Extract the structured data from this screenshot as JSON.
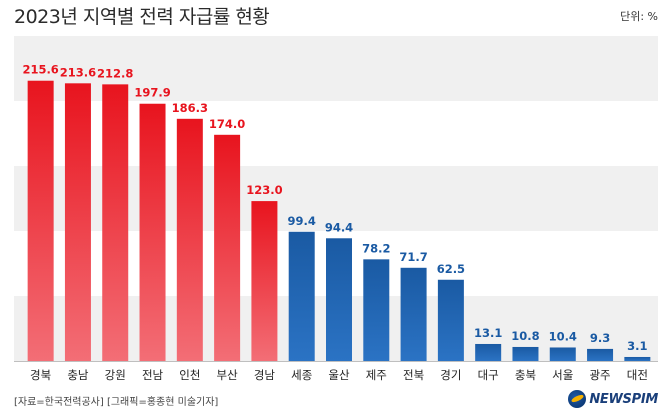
{
  "title": "2023년 지역별 전력 자급률 현황",
  "unit_label": "단위: %",
  "source": "[자료=한국전력공사] [그래픽=홍종현 미술기자]",
  "logo_text": "NEWSPIM",
  "colors": {
    "red_top": "#e8141e",
    "red_bottom": "#f36e76",
    "blue_top": "#1a5aa3",
    "blue_bottom": "#2b73c4",
    "red_label": "#e8141e",
    "blue_label": "#1a5aa3",
    "band": "#f0f0f0"
  },
  "chart_data": {
    "type": "bar",
    "categories": [
      "경북",
      "충남",
      "강원",
      "전남",
      "인천",
      "부산",
      "경남",
      "세종",
      "울산",
      "제주",
      "전북",
      "경기",
      "대구",
      "충북",
      "서울",
      "광주",
      "대전"
    ],
    "values": [
      215.6,
      213.6,
      212.8,
      197.9,
      186.3,
      174.0,
      123.0,
      99.4,
      94.4,
      78.2,
      71.7,
      62.5,
      13.1,
      10.8,
      10.4,
      9.3,
      3.1
    ],
    "labels": [
      "215.6",
      "213.6",
      "212.8",
      "197.9",
      "186.3",
      "174.0",
      "123.0",
      "99.4",
      "94.4",
      "78.2",
      "71.7",
      "62.5",
      "13.1",
      "10.8",
      "10.4",
      "9.3",
      "3.1"
    ],
    "threshold": 100,
    "ylim": [
      0,
      250
    ],
    "grid": "alternating bands"
  }
}
